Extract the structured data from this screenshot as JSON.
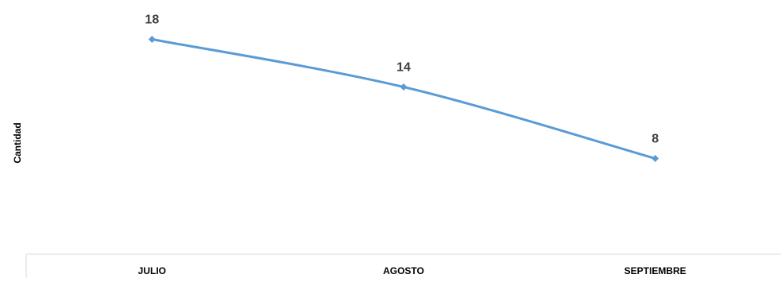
{
  "chart_data": {
    "type": "line",
    "title": "",
    "xlabel": "",
    "ylabel": "Cantidad",
    "categories": [
      "JULIO",
      "AGOSTO",
      "SEPTIEMBRE"
    ],
    "series": [
      {
        "values": [
          18,
          14,
          8
        ]
      }
    ],
    "data_labels": [
      "18",
      "14",
      "8"
    ],
    "ylim": [
      0,
      20
    ],
    "grid": false,
    "legend": "none",
    "line_style": "smooth",
    "marker": "diamond",
    "colors": {
      "series": "#5b9bd5",
      "axis": "#d9d9d9",
      "text": "#404040",
      "label": "#000000"
    }
  }
}
